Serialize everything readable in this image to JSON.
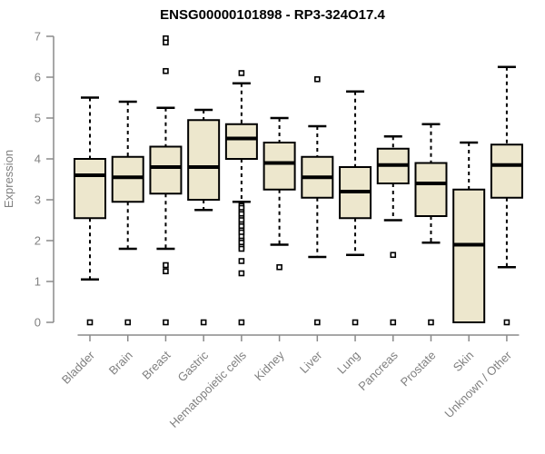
{
  "chart_data": {
    "type": "boxplot",
    "title": "ENSG00000101898 - RP3-324O17.4",
    "xlabel": "",
    "ylabel": "Expression",
    "ylim": [
      0,
      7
    ],
    "yticks": [
      0,
      1,
      2,
      3,
      4,
      5,
      6,
      7
    ],
    "grid": false,
    "legend": "none",
    "marker": "open-square",
    "categories": [
      "Bladder",
      "Brain",
      "Breast",
      "Gastric",
      "Hematopoietic cells",
      "Kidney",
      "Liver",
      "Lung",
      "Pancreas",
      "Prostate",
      "Skin",
      "Unknown / Other"
    ],
    "series": [
      {
        "name": "Bladder",
        "whisker_low": 1.05,
        "q1": 2.55,
        "median": 3.6,
        "q3": 4.0,
        "whisker_high": 5.5,
        "outliers": [
          0
        ]
      },
      {
        "name": "Brain",
        "whisker_low": 1.8,
        "q1": 2.95,
        "median": 3.55,
        "q3": 4.05,
        "whisker_high": 5.4,
        "outliers": [
          0
        ]
      },
      {
        "name": "Breast",
        "whisker_low": 1.8,
        "q1": 3.15,
        "median": 3.8,
        "q3": 4.3,
        "whisker_high": 5.25,
        "outliers": [
          6.95,
          6.85,
          6.15,
          1.4,
          1.25,
          0
        ]
      },
      {
        "name": "Gastric",
        "whisker_low": 2.75,
        "q1": 3.0,
        "median": 3.8,
        "q3": 4.95,
        "whisker_high": 5.2,
        "outliers": [
          0
        ]
      },
      {
        "name": "Hematopoietic cells",
        "whisker_low": 2.95,
        "q1": 4.0,
        "median": 4.5,
        "q3": 4.85,
        "whisker_high": 5.85,
        "outliers": [
          6.1,
          2.85,
          2.8,
          2.7,
          2.65,
          2.55,
          2.5,
          2.4,
          2.35,
          2.25,
          2.2,
          2.1,
          2.0,
          1.95,
          1.85,
          1.8,
          1.5,
          1.2,
          0
        ]
      },
      {
        "name": "Kidney",
        "whisker_low": 1.9,
        "q1": 3.25,
        "median": 3.9,
        "q3": 4.4,
        "whisker_high": 5.0,
        "outliers": [
          1.35
        ]
      },
      {
        "name": "Liver",
        "whisker_low": 1.6,
        "q1": 3.05,
        "median": 3.55,
        "q3": 4.05,
        "whisker_high": 4.8,
        "outliers": [
          5.95,
          0
        ]
      },
      {
        "name": "Lung",
        "whisker_low": 1.65,
        "q1": 2.55,
        "median": 3.2,
        "q3": 3.8,
        "whisker_high": 5.65,
        "outliers": [
          0
        ]
      },
      {
        "name": "Pancreas",
        "whisker_low": 2.5,
        "q1": 3.4,
        "median": 3.85,
        "q3": 4.25,
        "whisker_high": 4.55,
        "outliers": [
          1.65,
          0
        ]
      },
      {
        "name": "Prostate",
        "whisker_low": 1.95,
        "q1": 2.6,
        "median": 3.4,
        "q3": 3.9,
        "whisker_high": 4.85,
        "outliers": [
          0
        ]
      },
      {
        "name": "Skin",
        "whisker_low": 0.0,
        "q1": 0.0,
        "median": 1.9,
        "q3": 3.25,
        "whisker_high": 4.4,
        "outliers": []
      },
      {
        "name": "Unknown / Other",
        "whisker_low": 1.35,
        "q1": 3.05,
        "median": 3.85,
        "q3": 4.35,
        "whisker_high": 6.25,
        "outliers": [
          0
        ]
      }
    ],
    "colors": {
      "box_fill": "#EDE7CD",
      "box_border": "#000000",
      "median": "#000000",
      "whisker": "#000000",
      "outlier_stroke": "#000000",
      "outlier_fill": "#ffffff",
      "axis_line": "#8a8a8a",
      "tick_label": "#808080",
      "title_color": "#000000",
      "background": "#ffffff"
    }
  }
}
